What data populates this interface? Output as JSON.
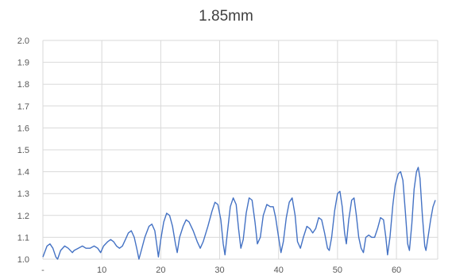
{
  "chart_data": {
    "type": "line",
    "title": "1.85mm",
    "xlabel": "",
    "ylabel": "",
    "xlim": [
      0,
      67
    ],
    "ylim": [
      1.0,
      2.0
    ],
    "grid": true,
    "legend": "none",
    "colors": {
      "series": "#4472c4",
      "grid": "#d9d9d9",
      "text": "#595959",
      "title": "#404040"
    },
    "x_tick_labels": [
      {
        "x": 0,
        "label": "-"
      },
      {
        "x": 10,
        "label": "10"
      },
      {
        "x": 20,
        "label": "20"
      },
      {
        "x": 30,
        "label": "30"
      },
      {
        "x": 40,
        "label": "40"
      },
      {
        "x": 50,
        "label": "50"
      },
      {
        "x": 60,
        "label": "60"
      }
    ],
    "y_tick_labels": [
      "1.0",
      "1.1",
      "1.2",
      "1.3",
      "1.4",
      "1.5",
      "1.6",
      "1.7",
      "1.8",
      "1.9",
      "2.0"
    ],
    "series": [
      {
        "points": [
          [
            0,
            1.01
          ],
          [
            0.7,
            1.06
          ],
          [
            1.2,
            1.07
          ],
          [
            1.7,
            1.05
          ],
          [
            2.2,
            1.01
          ],
          [
            2.5,
            1.0
          ],
          [
            3.0,
            1.04
          ],
          [
            3.7,
            1.06
          ],
          [
            4.3,
            1.05
          ],
          [
            5.0,
            1.03
          ],
          [
            5.3,
            1.04
          ],
          [
            6.0,
            1.05
          ],
          [
            6.7,
            1.06
          ],
          [
            7.3,
            1.05
          ],
          [
            8.0,
            1.05
          ],
          [
            8.7,
            1.06
          ],
          [
            9.3,
            1.05
          ],
          [
            9.8,
            1.03
          ],
          [
            10.3,
            1.06
          ],
          [
            11.0,
            1.08
          ],
          [
            11.5,
            1.09
          ],
          [
            12.0,
            1.08
          ],
          [
            12.5,
            1.06
          ],
          [
            13.0,
            1.05
          ],
          [
            13.5,
            1.06
          ],
          [
            14.0,
            1.09
          ],
          [
            14.5,
            1.12
          ],
          [
            15.0,
            1.13
          ],
          [
            15.5,
            1.1
          ],
          [
            16.0,
            1.04
          ],
          [
            16.3,
            1.0
          ],
          [
            16.7,
            1.04
          ],
          [
            17.3,
            1.1
          ],
          [
            18.0,
            1.15
          ],
          [
            18.5,
            1.16
          ],
          [
            19.0,
            1.13
          ],
          [
            19.3,
            1.07
          ],
          [
            19.6,
            1.01
          ],
          [
            20.0,
            1.09
          ],
          [
            20.5,
            1.17
          ],
          [
            21.0,
            1.21
          ],
          [
            21.5,
            1.2
          ],
          [
            22.0,
            1.15
          ],
          [
            22.5,
            1.07
          ],
          [
            22.8,
            1.03
          ],
          [
            23.2,
            1.1
          ],
          [
            23.8,
            1.15
          ],
          [
            24.3,
            1.18
          ],
          [
            24.8,
            1.17
          ],
          [
            25.5,
            1.13
          ],
          [
            26.2,
            1.08
          ],
          [
            26.7,
            1.05
          ],
          [
            27.2,
            1.08
          ],
          [
            28.0,
            1.15
          ],
          [
            28.7,
            1.22
          ],
          [
            29.2,
            1.26
          ],
          [
            29.7,
            1.25
          ],
          [
            30.2,
            1.18
          ],
          [
            30.6,
            1.07
          ],
          [
            30.9,
            1.02
          ],
          [
            31.3,
            1.12
          ],
          [
            31.8,
            1.24
          ],
          [
            32.3,
            1.28
          ],
          [
            32.8,
            1.25
          ],
          [
            33.2,
            1.14
          ],
          [
            33.6,
            1.05
          ],
          [
            34.0,
            1.09
          ],
          [
            34.5,
            1.21
          ],
          [
            35.0,
            1.28
          ],
          [
            35.5,
            1.27
          ],
          [
            36.0,
            1.17
          ],
          [
            36.4,
            1.07
          ],
          [
            36.9,
            1.1
          ],
          [
            37.4,
            1.2
          ],
          [
            38.0,
            1.25
          ],
          [
            38.6,
            1.24
          ],
          [
            39.1,
            1.24
          ],
          [
            39.5,
            1.19
          ],
          [
            40.0,
            1.1
          ],
          [
            40.4,
            1.03
          ],
          [
            40.8,
            1.08
          ],
          [
            41.3,
            1.19
          ],
          [
            41.8,
            1.26
          ],
          [
            42.3,
            1.28
          ],
          [
            42.8,
            1.2
          ],
          [
            43.2,
            1.08
          ],
          [
            43.7,
            1.05
          ],
          [
            44.2,
            1.1
          ],
          [
            44.8,
            1.15
          ],
          [
            45.3,
            1.14
          ],
          [
            45.8,
            1.12
          ],
          [
            46.3,
            1.14
          ],
          [
            46.8,
            1.19
          ],
          [
            47.3,
            1.18
          ],
          [
            47.8,
            1.12
          ],
          [
            48.3,
            1.05
          ],
          [
            48.6,
            1.04
          ],
          [
            49.0,
            1.1
          ],
          [
            49.5,
            1.22
          ],
          [
            50.0,
            1.3
          ],
          [
            50.4,
            1.31
          ],
          [
            50.8,
            1.24
          ],
          [
            51.2,
            1.12
          ],
          [
            51.5,
            1.07
          ],
          [
            51.9,
            1.18
          ],
          [
            52.4,
            1.27
          ],
          [
            52.8,
            1.28
          ],
          [
            53.2,
            1.2
          ],
          [
            53.6,
            1.1
          ],
          [
            54.0,
            1.05
          ],
          [
            54.4,
            1.03
          ],
          [
            54.8,
            1.1
          ],
          [
            55.3,
            1.11
          ],
          [
            55.8,
            1.1
          ],
          [
            56.3,
            1.1
          ],
          [
            56.8,
            1.14
          ],
          [
            57.3,
            1.19
          ],
          [
            57.8,
            1.18
          ],
          [
            58.2,
            1.1
          ],
          [
            58.5,
            1.02
          ],
          [
            58.9,
            1.1
          ],
          [
            59.4,
            1.25
          ],
          [
            59.8,
            1.34
          ],
          [
            60.3,
            1.39
          ],
          [
            60.7,
            1.4
          ],
          [
            61.1,
            1.36
          ],
          [
            61.5,
            1.22
          ],
          [
            61.9,
            1.07
          ],
          [
            62.2,
            1.04
          ],
          [
            62.6,
            1.16
          ],
          [
            63.0,
            1.32
          ],
          [
            63.4,
            1.4
          ],
          [
            63.7,
            1.42
          ],
          [
            64.0,
            1.37
          ],
          [
            64.4,
            1.2
          ],
          [
            64.8,
            1.06
          ],
          [
            65.0,
            1.04
          ],
          [
            65.3,
            1.09
          ],
          [
            65.8,
            1.18
          ],
          [
            66.2,
            1.24
          ],
          [
            66.6,
            1.27
          ]
        ]
      }
    ]
  }
}
